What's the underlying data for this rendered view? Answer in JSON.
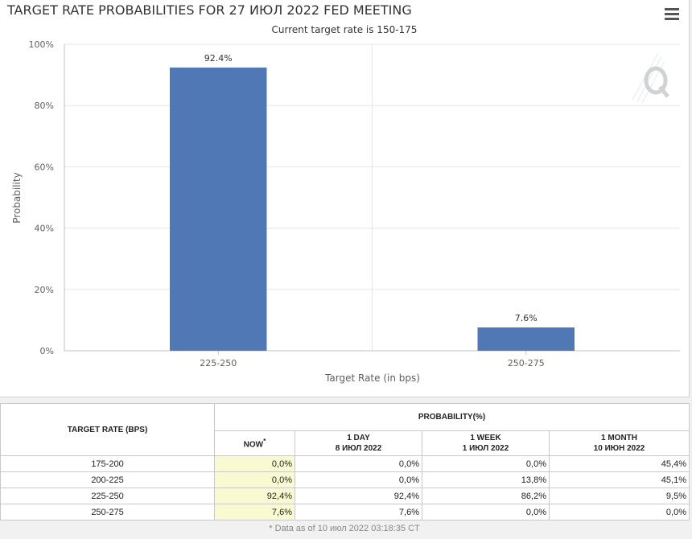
{
  "header": {
    "title": "TARGET RATE PROBABILITIES FOR 27 ИЮЛ 2022 FED MEETING",
    "subtitle": "Current target rate is 150-175"
  },
  "chart_data": {
    "type": "bar",
    "title": "TARGET RATE PROBABILITIES FOR 27 ИЮЛ 2022 FED MEETING",
    "subtitle": "Current target rate is 150-175",
    "categories": [
      "225-250",
      "250-275"
    ],
    "values": [
      92.4,
      7.6
    ],
    "data_labels": [
      "92.4%",
      "7.6%"
    ],
    "xlabel": "Target Rate (in bps)",
    "ylabel": "Probability",
    "ylim": [
      0,
      100
    ],
    "yticks": [
      0,
      20,
      40,
      60,
      80,
      100
    ],
    "ytick_labels": [
      "0%",
      "20%",
      "40%",
      "60%",
      "80%",
      "100%"
    ],
    "bar_color": "#5078b4",
    "grid": true,
    "legend": "none"
  },
  "table": {
    "rate_header": "TARGET RATE (BPS)",
    "prob_header": "PROBABILITY(%)",
    "columns": [
      {
        "line1": "NOW",
        "line2": ""
      },
      {
        "line1": "1 DAY",
        "line2": "8 ИЮЛ 2022"
      },
      {
        "line1": "1 WEEK",
        "line2": "1 ИЮЛ 2022"
      },
      {
        "line1": "1 MONTH",
        "line2": "10 ИЮН 2022"
      }
    ],
    "now_marker": "*",
    "rows": [
      {
        "rate": "175-200",
        "values": [
          "0,0%",
          "0,0%",
          "0,0%",
          "45,4%"
        ]
      },
      {
        "rate": "200-225",
        "values": [
          "0,0%",
          "0,0%",
          "13,8%",
          "45,1%"
        ]
      },
      {
        "rate": "225-250",
        "values": [
          "92,4%",
          "92,4%",
          "86,2%",
          "9,5%"
        ]
      },
      {
        "rate": "250-275",
        "values": [
          "7,6%",
          "7,6%",
          "0,0%",
          "0,0%"
        ]
      }
    ],
    "now_highlight_color": "#fafad2"
  },
  "footer": {
    "note": "* Data as of 10 июл 2022 03:18:35 CT"
  }
}
